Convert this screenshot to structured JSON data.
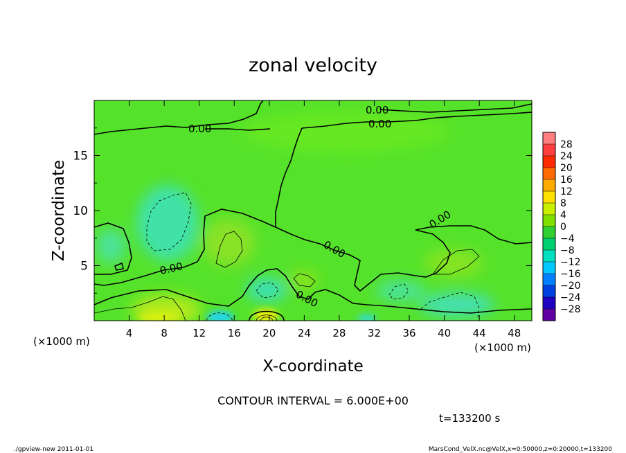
{
  "chart_data": {
    "type": "heatmap",
    "title": "zonal velocity",
    "xlabel": "X-coordinate",
    "ylabel": "Z-coordinate",
    "x_unit": "(×1000 m)",
    "y_unit": "(×1000 m)",
    "xlim": [
      0,
      50
    ],
    "ylim": [
      0,
      20
    ],
    "x_ticks": [
      4,
      8,
      12,
      16,
      20,
      24,
      28,
      32,
      36,
      40,
      44,
      48
    ],
    "y_ticks": [
      5,
      10,
      15
    ],
    "contour_interval_text": "CONTOUR INTERVAL = 6.000E+00",
    "contour_label": "0.00",
    "time_text": "t=133200 s",
    "colorbar": {
      "ticks": [
        28,
        24,
        20,
        16,
        12,
        8,
        4,
        0,
        -4,
        -8,
        -12,
        -16,
        -20,
        -24,
        -28
      ],
      "colors": [
        "#ff7f7f",
        "#ff3f3f",
        "#ff2a00",
        "#ff6a00",
        "#ffaa00",
        "#ffe000",
        "#c8f000",
        "#80e000",
        "#30d030",
        "#00d070",
        "#00e0c0",
        "#00c8ff",
        "#0080ff",
        "#0040e0",
        "#2000c0",
        "#6000a0"
      ]
    },
    "features": [
      {
        "x": 8,
        "z": 9,
        "value": -4
      },
      {
        "x": 15,
        "z": 7.5,
        "value": 5
      },
      {
        "x": 8,
        "z": 1,
        "value": 8
      },
      {
        "x": 19.5,
        "z": 0.6,
        "value": 12
      },
      {
        "x": 14.5,
        "z": 0.4,
        "value": -10
      },
      {
        "x": 20,
        "z": 3,
        "value": -6
      },
      {
        "x": 23,
        "z": 4,
        "value": 6
      },
      {
        "x": 34,
        "z": 3.3,
        "value": -5
      },
      {
        "x": 41.5,
        "z": 5,
        "value": 5
      },
      {
        "x": 42,
        "z": 1.5,
        "value": -5
      },
      {
        "x": 40,
        "z": 0.6,
        "value": -8
      }
    ]
  },
  "footer": {
    "left": "./gpview-new   2011-01-01",
    "right": "MarsCond_VelX.nc@VelX,x=0:50000,z=0:20000,t=133200"
  }
}
